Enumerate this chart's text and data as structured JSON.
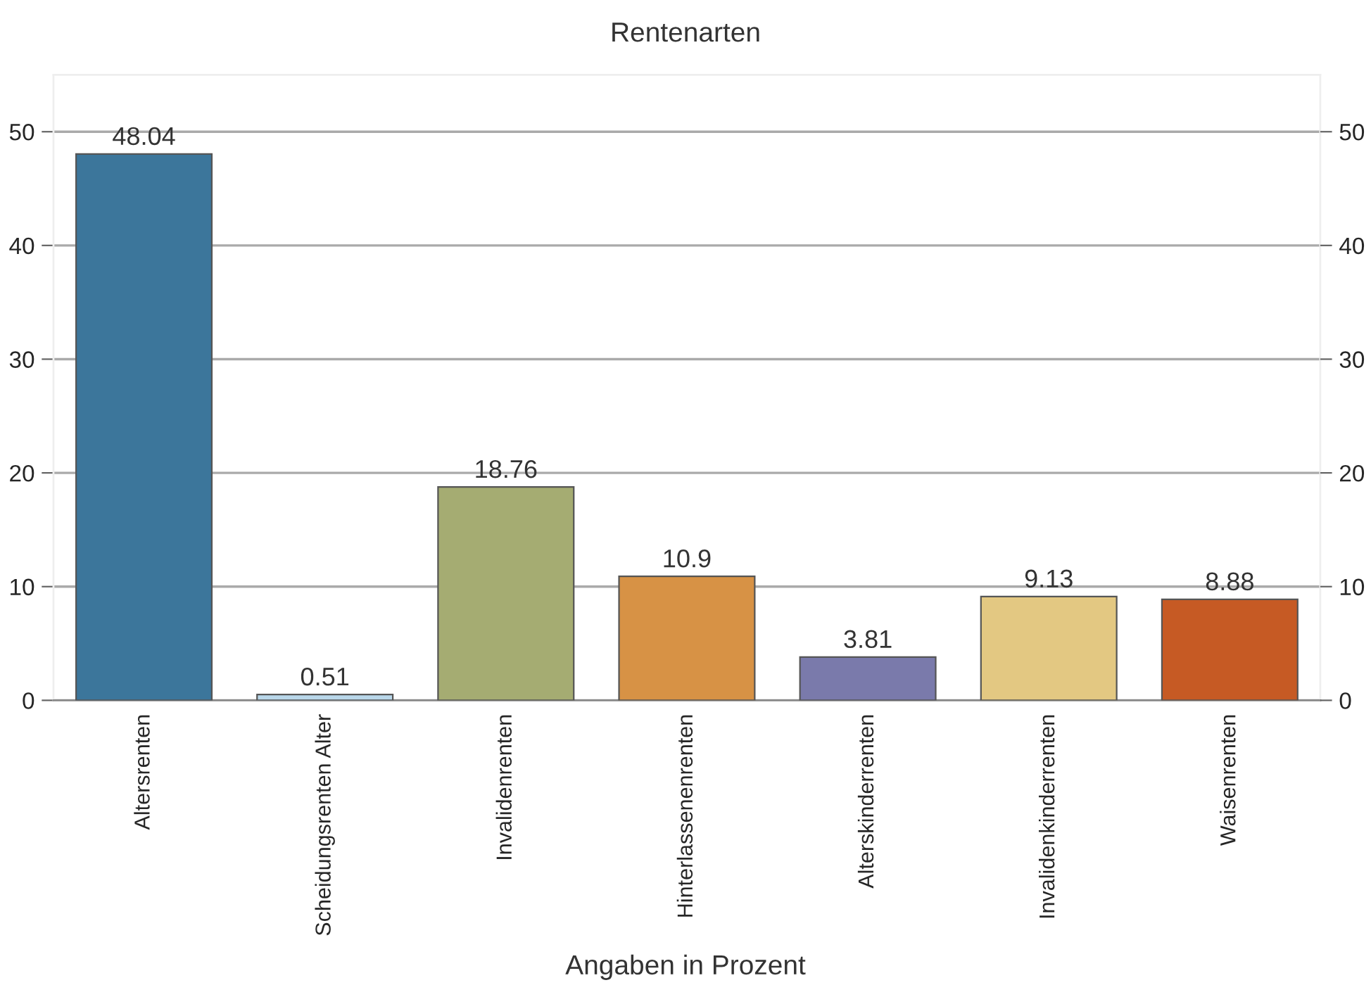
{
  "chart_data": {
    "type": "bar",
    "title": "Rentenarten",
    "xlabel": "Angaben in Prozent",
    "categories": [
      "Altersrenten",
      "Scheidungsrenten Alter",
      "Invalidenrenten",
      "Hinterlassenenrenten",
      "Alterskinderrenten",
      "Invalidenkinderrenten",
      "Waisenrenten"
    ],
    "values": [
      48.04,
      0.51,
      18.76,
      10.9,
      3.81,
      9.13,
      8.88
    ],
    "colors": [
      "#3c769b",
      "#b9d7ea",
      "#a5ac72",
      "#d79245",
      "#7a7aab",
      "#e3c882",
      "#c65a24"
    ],
    "ylim": [
      0,
      55
    ],
    "yticks": [
      0,
      10,
      20,
      30,
      40,
      50
    ],
    "y2lim": [
      0,
      55
    ],
    "y2ticks": [
      0,
      10,
      20,
      30,
      40,
      50
    ],
    "grid": "y",
    "data_labels": true
  }
}
